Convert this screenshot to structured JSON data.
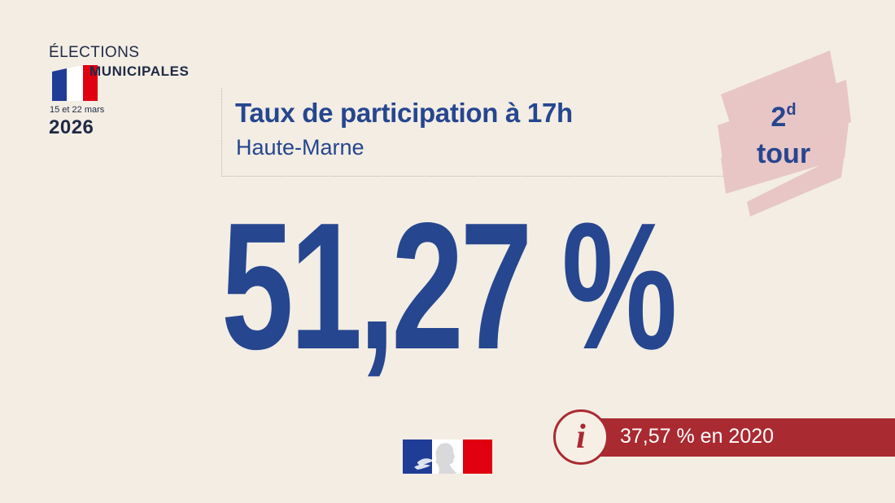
{
  "logo": {
    "title": "ÉLECTIONS",
    "subtitle": "MUNICIPALES",
    "dates": "15 et 22 mars",
    "year": "2026"
  },
  "header": {
    "title": "Taux de participation à 17h",
    "subtitle": "Haute-Marne"
  },
  "round": {
    "number": "2",
    "superscript": "d",
    "label": "tour"
  },
  "turnout": {
    "value": "51,27 %"
  },
  "info": {
    "icon": "info-icon",
    "text": "37,57 % en 2020"
  },
  "colors": {
    "background": "#f3ede4",
    "blue": "#26468f",
    "red": "#aa2a31",
    "badge_pink": "#e8c6c6"
  }
}
